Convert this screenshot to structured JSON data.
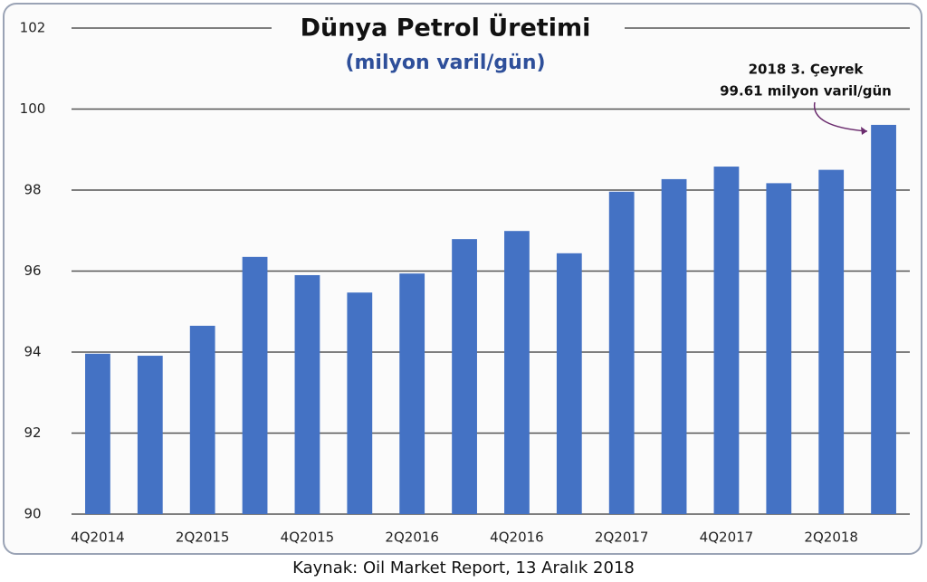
{
  "chart_data": {
    "type": "bar",
    "title": "Dünya Petrol Üretimi",
    "subtitle": "(milyon varil/gün)",
    "annotation": [
      "2018 3. Çeyrek",
      "99.61 milyon varil/gün"
    ],
    "source": "Kaynak: Oil Market Report, 13 Aralık 2018",
    "categories": [
      "4Q2014",
      null,
      "2Q2015",
      null,
      "4Q2015",
      null,
      "2Q2016",
      null,
      "4Q2016",
      null,
      "2Q2017",
      null,
      "4Q2017",
      null,
      "2Q2018",
      null
    ],
    "values": [
      93.96,
      93.91,
      94.65,
      96.35,
      95.9,
      95.47,
      95.94,
      96.79,
      96.99,
      96.44,
      97.96,
      98.27,
      98.58,
      98.17,
      98.5,
      99.61
    ],
    "color": "#4472c4",
    "ylim": [
      90,
      102
    ],
    "yticks": [
      90,
      92,
      94,
      96,
      98,
      100,
      102
    ],
    "grid": true
  }
}
